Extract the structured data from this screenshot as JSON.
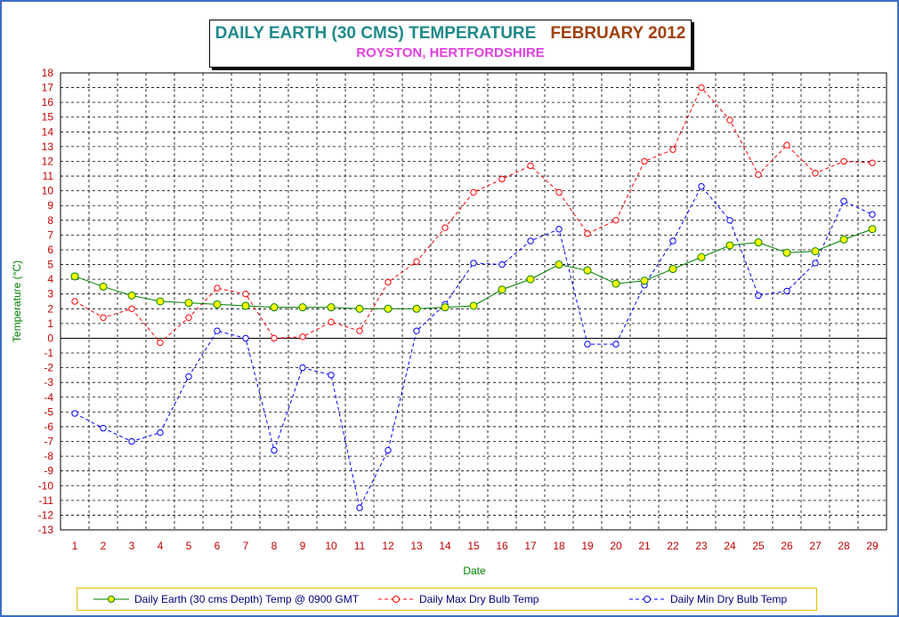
{
  "title": {
    "main": "DAILY EARTH (30 CMS) TEMPERATURE",
    "month": "FEBRUARY 2012",
    "subtitle": "ROYSTON, HERTFORDSHIRE"
  },
  "chart_data": {
    "type": "line",
    "title": "DAILY EARTH (30 CMS) TEMPERATURE   FEBRUARY 2012",
    "subtitle": "ROYSTON, HERTFORDSHIRE",
    "xlabel": "Date",
    "ylabel": "Temperature (°C)",
    "x": [
      1,
      2,
      3,
      4,
      5,
      6,
      7,
      8,
      9,
      10,
      11,
      12,
      13,
      14,
      15,
      16,
      17,
      18,
      19,
      20,
      21,
      22,
      23,
      24,
      25,
      26,
      27,
      28,
      29
    ],
    "ylim": [
      -13,
      18
    ],
    "yticks": [
      18,
      17,
      16,
      15,
      14,
      13,
      12,
      11,
      10,
      9,
      8,
      7,
      6,
      5,
      4,
      3,
      2,
      1,
      0,
      -1,
      -2,
      -3,
      -4,
      -5,
      -6,
      -7,
      -8,
      -9,
      -10,
      -11,
      -12,
      -13
    ],
    "grid": true,
    "legend_position": "bottom",
    "series": [
      {
        "name": "Daily Earth (30 cms Depth) Temp @ 0900 GMT",
        "color": "#008000",
        "marker_fill": "#ffff00",
        "style": "solid",
        "values": [
          4.2,
          3.5,
          2.9,
          2.5,
          2.4,
          2.3,
          2.2,
          2.1,
          2.1,
          2.1,
          2.0,
          2.0,
          2.0,
          2.1,
          2.2,
          3.3,
          4.0,
          5.0,
          4.6,
          3.7,
          3.9,
          4.7,
          5.5,
          6.3,
          6.5,
          5.8,
          5.9,
          6.7,
          7.4
        ]
      },
      {
        "name": "Daily Max Dry Bulb Temp",
        "color": "#ff0000",
        "marker_fill": "#ffffff",
        "style": "dashed",
        "values": [
          2.5,
          1.4,
          2.0,
          -0.3,
          1.4,
          3.4,
          3.0,
          0.0,
          0.1,
          1.1,
          0.5,
          3.8,
          5.2,
          7.5,
          9.9,
          10.8,
          11.7,
          9.9,
          7.1,
          8.0,
          12.0,
          12.8,
          17.0,
          14.8,
          11.1,
          13.1,
          11.2,
          12.0,
          11.9
        ]
      },
      {
        "name": "Daily Min Dry Bulb Temp",
        "color": "#0000ff",
        "marker_fill": "#ffffff",
        "style": "dashed",
        "values": [
          -5.1,
          -6.1,
          -7.0,
          -6.4,
          -2.6,
          0.5,
          0.0,
          -7.6,
          -2.0,
          -2.5,
          -11.5,
          -7.6,
          0.5,
          2.3,
          5.1,
          5.0,
          6.6,
          7.4,
          -0.4,
          -0.4,
          3.6,
          6.6,
          10.3,
          8.0,
          2.9,
          3.2,
          5.1,
          9.3,
          8.4
        ]
      }
    ]
  }
}
